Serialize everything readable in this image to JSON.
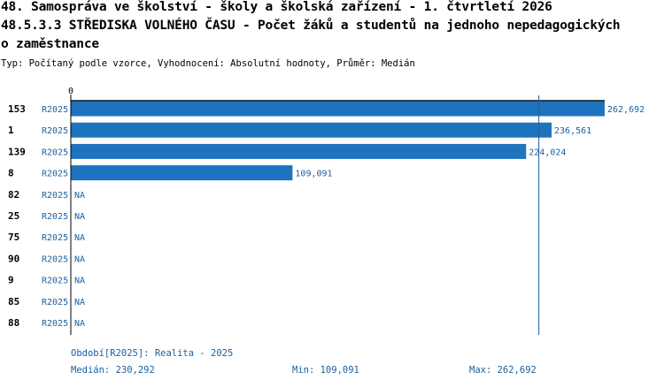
{
  "header": {
    "title_line1": "48. Samospráva ve školství - školy a školská zařízení - 1. čtvrtletí 2026",
    "title_line2": "48.5.3.3 STŘEDISKA VOLNÉHO ČASU - Počet žáků a studentů na jednoho nepedagogických",
    "title_line3": "o zaměstnance",
    "subtitle": "Typ: Počítaný podle vzorce, Vyhodnocení: Absolutní hodnoty, Průměr: Medián"
  },
  "footer": {
    "period": "Období[R2025]: Realita - 2025",
    "median": "Medián: 230,292",
    "min": "Min: 109,091",
    "max": "Max: 262,692"
  },
  "chart_data": {
    "type": "bar",
    "orientation": "horizontal",
    "x_axis_tick": "0",
    "xlim": [
      0,
      262.692
    ],
    "median_line": 230.292,
    "bar_color": "#1e73be",
    "text_color": "#1a5f9e",
    "rows": [
      {
        "id": "153",
        "period": "R2025",
        "value": 262.692,
        "label": "262,692"
      },
      {
        "id": "1",
        "period": "R2025",
        "value": 236.561,
        "label": "236,561"
      },
      {
        "id": "139",
        "period": "R2025",
        "value": 224.024,
        "label": "224,024"
      },
      {
        "id": "8",
        "period": "R2025",
        "value": 109.091,
        "label": "109,091"
      },
      {
        "id": "82",
        "period": "R2025",
        "value": null,
        "label": "NA"
      },
      {
        "id": "25",
        "period": "R2025",
        "value": null,
        "label": "NA"
      },
      {
        "id": "75",
        "period": "R2025",
        "value": null,
        "label": "NA"
      },
      {
        "id": "90",
        "period": "R2025",
        "value": null,
        "label": "NA"
      },
      {
        "id": "9",
        "period": "R2025",
        "value": null,
        "label": "NA"
      },
      {
        "id": "85",
        "period": "R2025",
        "value": null,
        "label": "NA"
      },
      {
        "id": "88",
        "period": "R2025",
        "value": null,
        "label": "NA"
      }
    ]
  }
}
